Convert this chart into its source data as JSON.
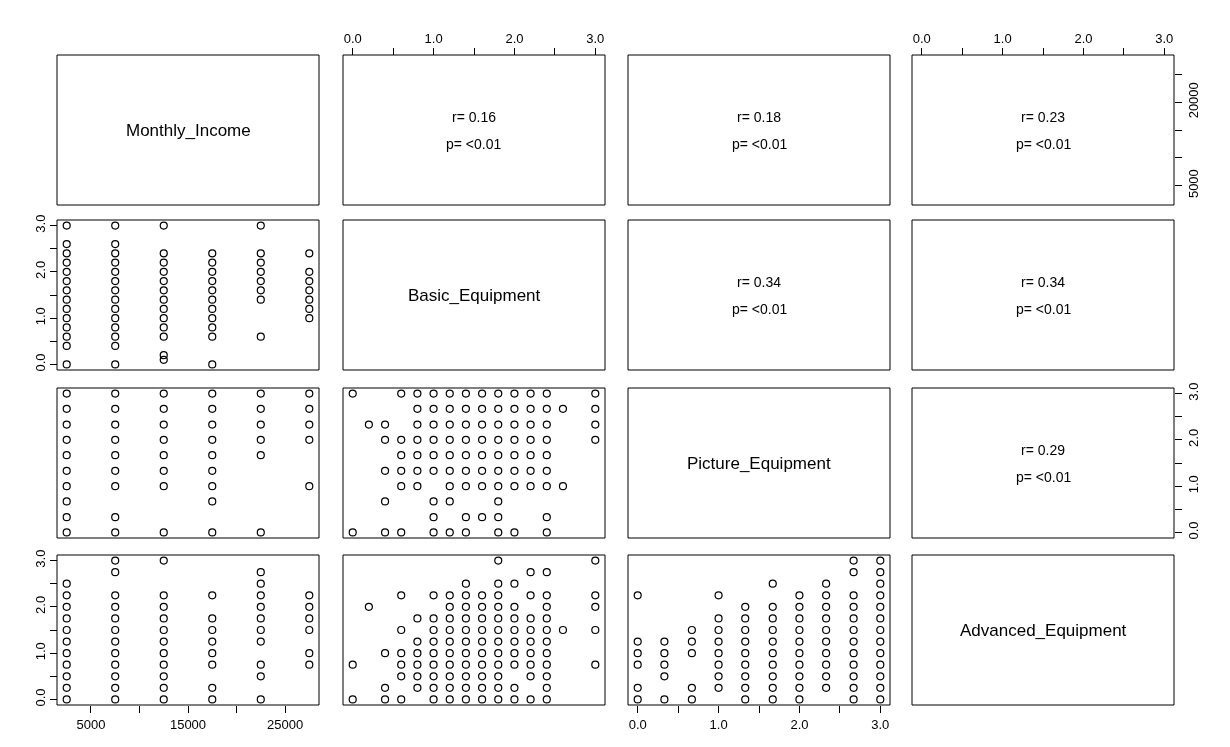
{
  "chart_data": [
    {
      "type": "other",
      "title": "Monthly_Income"
    },
    {
      "type": "scatter",
      "annotations": [
        "r= 0.16",
        "p= <0.01"
      ],
      "tick_labels": "x",
      "xlim": [
        -0.12,
        3.12
      ],
      "xticks": [
        {
          "value": 0,
          "label": "0.0"
        },
        {
          "value": 0.5,
          "label": null
        },
        {
          "value": 1,
          "label": "1.0"
        },
        {
          "value": 1.5,
          "label": null
        },
        {
          "value": 2,
          "label": "2.0"
        },
        {
          "value": 2.5,
          "label": null
        },
        {
          "value": 3,
          "label": "3.0"
        }
      ],
      "ylim": [
        1500,
        28500
      ]
    },
    {
      "type": "other",
      "annotations": [
        "r= 0.18",
        "p= <0.01"
      ]
    },
    {
      "type": "scatter",
      "annotations": [
        "r= 0.23",
        "p= <0.01"
      ],
      "xlim": [
        -0.12,
        3.12
      ],
      "xticks": [
        {
          "value": 0,
          "label": "0.0"
        },
        {
          "value": 0.5,
          "label": null
        },
        {
          "value": 1,
          "label": "1.0"
        },
        {
          "value": 1.5,
          "label": null
        },
        {
          "value": 2,
          "label": "2.0"
        },
        {
          "value": 2.5,
          "label": null
        },
        {
          "value": 3,
          "label": "3.0"
        }
      ],
      "ylim": [
        1500,
        28500
      ],
      "yticks": [
        5000,
        {
          "value": 10000,
          "label": null
        },
        {
          "value": 15000,
          "label": null
        },
        20000,
        {
          "value": 25000,
          "label": null
        }
      ]
    },
    {
      "type": "scatter",
      "color": "#000000",
      "marker": "circle",
      "tick_labels": "y",
      "xlim": [
        1500,
        28500
      ],
      "ylim": [
        -0.12,
        3.12
      ],
      "yticks": [
        {
          "value": 0,
          "label": "0.0"
        },
        {
          "value": 0.5,
          "label": null
        },
        {
          "value": 1,
          "label": "1.0"
        },
        {
          "value": 1.5,
          "label": null
        },
        {
          "value": 2,
          "label": "2.0"
        },
        {
          "value": 2.5,
          "label": null
        },
        {
          "value": 3,
          "label": "3.0"
        }
      ],
      "x": [
        2500,
        2500,
        2500,
        2500,
        2500,
        2500,
        2500,
        2500,
        2500,
        2500,
        2500,
        2500,
        2500,
        2500,
        7500,
        7500,
        7500,
        7500,
        7500,
        7500,
        7500,
        7500,
        7500,
        7500,
        7500,
        7500,
        7500,
        7500,
        12500,
        12500,
        12500,
        12500,
        12500,
        12500,
        12500,
        12500,
        12500,
        12500,
        12500,
        12500,
        12500,
        17500,
        17500,
        17500,
        17500,
        17500,
        17500,
        17500,
        17500,
        17500,
        17500,
        17500,
        22500,
        22500,
        22500,
        22500,
        22500,
        22500,
        22500,
        22500,
        27500,
        27500,
        27500,
        27500,
        27500,
        27500,
        27500
      ],
      "values": [
        0,
        0.4,
        0.6,
        0.8,
        1,
        1.2,
        1.4,
        1.6,
        1.8,
        2,
        2.2,
        2.4,
        2.6,
        3,
        0,
        0.4,
        0.6,
        0.8,
        1,
        1.2,
        1.4,
        1.6,
        1.8,
        2,
        2.2,
        2.4,
        2.6,
        3,
        0.1,
        0.2,
        0.6,
        0.8,
        1,
        1.2,
        1.4,
        1.6,
        1.8,
        2,
        2.2,
        2.4,
        3,
        0,
        0.6,
        0.8,
        1,
        1.2,
        1.4,
        1.6,
        1.8,
        2,
        2.2,
        2.4,
        0.6,
        1.4,
        1.6,
        1.8,
        2,
        2.2,
        2.4,
        3,
        1,
        1.2,
        1.4,
        1.6,
        1.8,
        2,
        2.4
      ]
    },
    {
      "type": "other",
      "title": "Basic_Equipment"
    },
    {
      "type": "other",
      "annotations": [
        "r= 0.34",
        "p= <0.01"
      ]
    },
    {
      "type": "other",
      "annotations": [
        "r= 0.34",
        "p= <0.01"
      ]
    },
    {
      "type": "scatter",
      "color": "#000000",
      "marker": "circle",
      "tick_labels": false,
      "xlim": [
        1500,
        28500
      ],
      "ylim": [
        -0.12,
        3.12
      ],
      "x": [
        2500,
        2500,
        2500,
        2500,
        2500,
        2500,
        2500,
        2500,
        2500,
        2500,
        7500,
        7500,
        7500,
        7500,
        7500,
        7500,
        7500,
        7500,
        7500,
        12500,
        12500,
        12500,
        12500,
        12500,
        12500,
        12500,
        12500,
        17500,
        17500,
        17500,
        17500,
        17500,
        17500,
        17500,
        17500,
        17500,
        22500,
        22500,
        22500,
        22500,
        22500,
        22500,
        27500,
        27500,
        27500,
        27500,
        27500
      ],
      "values": [
        0,
        0.33,
        0.67,
        1,
        1.33,
        1.67,
        2,
        2.33,
        2.67,
        3,
        0,
        0.33,
        1,
        1.33,
        1.67,
        2,
        2.33,
        2.67,
        3,
        0,
        1,
        1.33,
        1.67,
        2,
        2.33,
        2.67,
        3,
        0,
        0.67,
        1,
        1.33,
        1.67,
        2,
        2.33,
        2.67,
        3,
        0,
        1.67,
        2,
        2.33,
        2.67,
        3,
        1,
        2,
        2.33,
        2.67,
        3
      ]
    },
    {
      "type": "scatter",
      "color": "#000000",
      "marker": "circle",
      "tick_labels": false,
      "xlim": [
        -0.12,
        3.12
      ],
      "ylim": [
        -0.12,
        3.12
      ],
      "x": [
        0,
        0.6,
        0.8,
        1,
        1.2,
        1.4,
        1.6,
        1.8,
        2,
        2.2,
        2.4,
        3,
        0.8,
        1,
        1.2,
        1.4,
        1.6,
        1.8,
        2,
        2.2,
        2.4,
        2.6,
        3,
        0.2,
        0.4,
        0.8,
        1,
        1.2,
        1.4,
        1.6,
        1.8,
        2,
        2.2,
        2.4,
        3,
        0.4,
        0.6,
        0.8,
        1,
        1.2,
        1.4,
        1.6,
        1.8,
        2,
        2.2,
        2.4,
        3,
        0.6,
        0.8,
        1,
        1.2,
        1.4,
        1.6,
        1.8,
        2,
        2.2,
        2.4,
        0.4,
        0.6,
        0.8,
        1,
        1.2,
        1.4,
        1.6,
        1.8,
        2,
        2.2,
        2.4,
        0.6,
        0.8,
        1.2,
        1.4,
        1.6,
        1.8,
        2,
        2.2,
        2.4,
        2.6,
        0.4,
        1,
        1.2,
        1.8,
        1,
        1.4,
        1.6,
        1.8,
        2.4,
        0,
        0.4,
        0.6,
        1,
        1.2,
        1.4,
        1.8,
        2,
        2.4
      ],
      "values": [
        3,
        3,
        3,
        3,
        3,
        3,
        3,
        3,
        3,
        3,
        3,
        3,
        2.67,
        2.67,
        2.67,
        2.67,
        2.67,
        2.67,
        2.67,
        2.67,
        2.67,
        2.67,
        2.67,
        2.33,
        2.33,
        2.33,
        2.33,
        2.33,
        2.33,
        2.33,
        2.33,
        2.33,
        2.33,
        2.33,
        2.33,
        2,
        2,
        2,
        2,
        2,
        2,
        2,
        2,
        2,
        2,
        2,
        2,
        1.67,
        1.67,
        1.67,
        1.67,
        1.67,
        1.67,
        1.67,
        1.67,
        1.67,
        1.67,
        1.33,
        1.33,
        1.33,
        1.33,
        1.33,
        1.33,
        1.33,
        1.33,
        1.33,
        1.33,
        1.33,
        1,
        1,
        1,
        1,
        1,
        1,
        1,
        1,
        1,
        1,
        0.67,
        0.67,
        0.67,
        0.67,
        0.33,
        0.33,
        0.33,
        0.33,
        0.33,
        0,
        0,
        0,
        0,
        0,
        0,
        0,
        0,
        0
      ]
    },
    {
      "type": "other",
      "title": "Picture_Equipment"
    },
    {
      "type": "scatter",
      "annotations": [
        "r= 0.29",
        "p= <0.01"
      ],
      "tick_labels": "y",
      "xlim": [
        -0.12,
        3.12
      ],
      "ylim": [
        -0.12,
        3.12
      ],
      "yticks": [
        {
          "value": 0,
          "label": "0.0"
        },
        {
          "value": 0.5,
          "label": null
        },
        {
          "value": 1,
          "label": "1.0"
        },
        {
          "value": 1.5,
          "label": null
        },
        {
          "value": 2,
          "label": "2.0"
        },
        {
          "value": 2.5,
          "label": null
        },
        {
          "value": 3,
          "label": "3.0"
        }
      ]
    },
    {
      "type": "scatter",
      "color": "#000000",
      "marker": "circle",
      "xlim": [
        1500,
        28500
      ],
      "xticks": [
        5000,
        {
          "value": 10000,
          "label": null
        },
        15000,
        {
          "value": 20000,
          "label": null
        },
        25000
      ],
      "ylim": [
        -0.12,
        3.12
      ],
      "yticks": [
        {
          "value": 0,
          "label": "0.0"
        },
        {
          "value": 0.5,
          "label": null
        },
        {
          "value": 1,
          "label": "1.0"
        },
        {
          "value": 1.5,
          "label": null
        },
        {
          "value": 2,
          "label": "2.0"
        },
        {
          "value": 2.5,
          "label": null
        },
        {
          "value": 3,
          "label": "3.0"
        }
      ],
      "x": [
        2500,
        2500,
        2500,
        2500,
        2500,
        2500,
        2500,
        2500,
        2500,
        2500,
        2500,
        7500,
        7500,
        7500,
        7500,
        7500,
        7500,
        7500,
        7500,
        7500,
        7500,
        7500,
        7500,
        12500,
        12500,
        12500,
        12500,
        12500,
        12500,
        12500,
        12500,
        12500,
        12500,
        12500,
        17500,
        17500,
        17500,
        17500,
        17500,
        17500,
        17500,
        17500,
        22500,
        22500,
        22500,
        22500,
        22500,
        22500,
        22500,
        22500,
        22500,
        22500,
        27500,
        27500,
        27500,
        27500,
        27500,
        27500
      ],
      "values": [
        0,
        0.25,
        0.5,
        0.75,
        1,
        1.25,
        1.5,
        1.75,
        2,
        2.25,
        2.5,
        0,
        0.25,
        0.5,
        0.75,
        1,
        1.25,
        1.5,
        1.75,
        2,
        2.25,
        2.75,
        3,
        0,
        0.25,
        0.5,
        0.75,
        1,
        1.25,
        1.5,
        1.75,
        2,
        2.25,
        3,
        0,
        0.25,
        0.75,
        1,
        1.25,
        1.5,
        1.75,
        2.25,
        0,
        0.5,
        0.75,
        1.25,
        1.5,
        1.75,
        2,
        2.25,
        2.5,
        2.75,
        0.75,
        1,
        1.5,
        1.75,
        2,
        2.25
      ]
    },
    {
      "type": "scatter",
      "color": "#000000",
      "marker": "circle",
      "tick_labels": false,
      "xlim": [
        -0.12,
        3.12
      ],
      "ylim": [
        -0.12,
        3.12
      ],
      "x": [
        1.8,
        3,
        2.2,
        2.4,
        1.4,
        1.8,
        2,
        0.6,
        1,
        1.2,
        1.4,
        1.6,
        1.8,
        2.2,
        2.4,
        3,
        0.2,
        1.2,
        1.4,
        1.6,
        1.8,
        2,
        2.4,
        3,
        0.8,
        1,
        1.2,
        1.4,
        1.6,
        1.8,
        2,
        2.2,
        2.4,
        0.6,
        1,
        1.2,
        1.4,
        1.6,
        1.8,
        2,
        2.2,
        2.4,
        2.6,
        3,
        0.8,
        1,
        1.2,
        1.4,
        1.6,
        1.8,
        2,
        2.2,
        2.4,
        0.4,
        0.6,
        0.8,
        1,
        1.2,
        1.4,
        1.6,
        1.8,
        2,
        2.2,
        2.4,
        0,
        0.6,
        0.8,
        1,
        1.2,
        1.4,
        1.6,
        1.8,
        2,
        2.2,
        2.4,
        3,
        0.6,
        0.8,
        1,
        1.2,
        1.4,
        1.6,
        1.8,
        2.2,
        2.4,
        0.4,
        0.8,
        1,
        1.2,
        1.4,
        1.6,
        1.8,
        2,
        2.4,
        0,
        0.4,
        0.6,
        1,
        1.2,
        1.4,
        1.6,
        1.8,
        2,
        2.2,
        2.4
      ],
      "values": [
        3,
        3,
        2.75,
        2.75,
        2.5,
        2.5,
        2.5,
        2.25,
        2.25,
        2.25,
        2.25,
        2.25,
        2.25,
        2.25,
        2.25,
        2.25,
        2,
        2,
        2,
        2,
        2,
        2,
        2,
        2,
        1.75,
        1.75,
        1.75,
        1.75,
        1.75,
        1.75,
        1.75,
        1.75,
        1.75,
        1.5,
        1.5,
        1.5,
        1.5,
        1.5,
        1.5,
        1.5,
        1.5,
        1.5,
        1.5,
        1.5,
        1.25,
        1.25,
        1.25,
        1.25,
        1.25,
        1.25,
        1.25,
        1.25,
        1.25,
        1,
        1,
        1,
        1,
        1,
        1,
        1,
        1,
        1,
        1,
        1,
        0.75,
        0.75,
        0.75,
        0.75,
        0.75,
        0.75,
        0.75,
        0.75,
        0.75,
        0.75,
        0.75,
        0.75,
        0.5,
        0.5,
        0.5,
        0.5,
        0.5,
        0.5,
        0.5,
        0.5,
        0.5,
        0.25,
        0.25,
        0.25,
        0.25,
        0.25,
        0.25,
        0.25,
        0.25,
        0.25,
        0,
        0,
        0,
        0,
        0,
        0,
        0,
        0,
        0,
        0,
        0
      ]
    },
    {
      "type": "scatter",
      "color": "#000000",
      "marker": "circle",
      "tick_labels": "x",
      "xlim": [
        -0.12,
        3.12
      ],
      "xticks": [
        {
          "value": 0,
          "label": "0.0"
        },
        {
          "value": 0.5,
          "label": null
        },
        {
          "value": 1,
          "label": "1.0"
        },
        {
          "value": 1.5,
          "label": null
        },
        {
          "value": 2,
          "label": "2.0"
        },
        {
          "value": 2.5,
          "label": null
        },
        {
          "value": 3,
          "label": "3.0"
        }
      ],
      "ylim": [
        -0.12,
        3.12
      ],
      "x": [
        0,
        0,
        0,
        0,
        0,
        0,
        0.33,
        0.33,
        0.33,
        0.33,
        0.33,
        0.67,
        0.67,
        0.67,
        0.67,
        0.67,
        1,
        1,
        1,
        1,
        1,
        1,
        1,
        1,
        1.33,
        1.33,
        1.33,
        1.33,
        1.33,
        1.33,
        1.33,
        1.33,
        1.33,
        1.67,
        1.67,
        1.67,
        1.67,
        1.67,
        1.67,
        1.67,
        1.67,
        1.67,
        1.67,
        2,
        2,
        2,
        2,
        2,
        2,
        2,
        2,
        2,
        2,
        2.33,
        2.33,
        2.33,
        2.33,
        2.33,
        2.33,
        2.33,
        2.33,
        2.33,
        2.33,
        2.67,
        2.67,
        2.67,
        2.67,
        2.67,
        2.67,
        2.67,
        2.67,
        2.67,
        2.67,
        2.67,
        2.67,
        3,
        3,
        3,
        3,
        3,
        3,
        3,
        3,
        3,
        3,
        3,
        3,
        3
      ],
      "values": [
        0,
        0.25,
        0.75,
        1,
        1.25,
        2.25,
        0,
        0.5,
        0.75,
        1,
        1.25,
        0,
        0.25,
        1,
        1.25,
        1.5,
        0.25,
        0.5,
        0.75,
        1,
        1.25,
        1.5,
        1.75,
        2.25,
        0,
        0.25,
        0.5,
        0.75,
        1,
        1.25,
        1.5,
        1.75,
        2,
        0,
        0.25,
        0.5,
        0.75,
        1,
        1.25,
        1.5,
        1.75,
        2,
        2.5,
        0,
        0.25,
        0.5,
        0.75,
        1,
        1.25,
        1.5,
        1.75,
        2,
        2.25,
        0.25,
        0.5,
        0.75,
        1,
        1.25,
        1.5,
        1.75,
        2,
        2.25,
        2.5,
        0,
        0.25,
        0.5,
        0.75,
        1,
        1.25,
        1.5,
        1.75,
        2,
        2.25,
        2.75,
        3,
        0,
        0.25,
        0.5,
        0.75,
        1,
        1.25,
        1.5,
        1.75,
        2,
        2.25,
        2.5,
        2.75,
        3
      ]
    },
    {
      "type": "other",
      "title": "Advanced_Equipment"
    }
  ]
}
